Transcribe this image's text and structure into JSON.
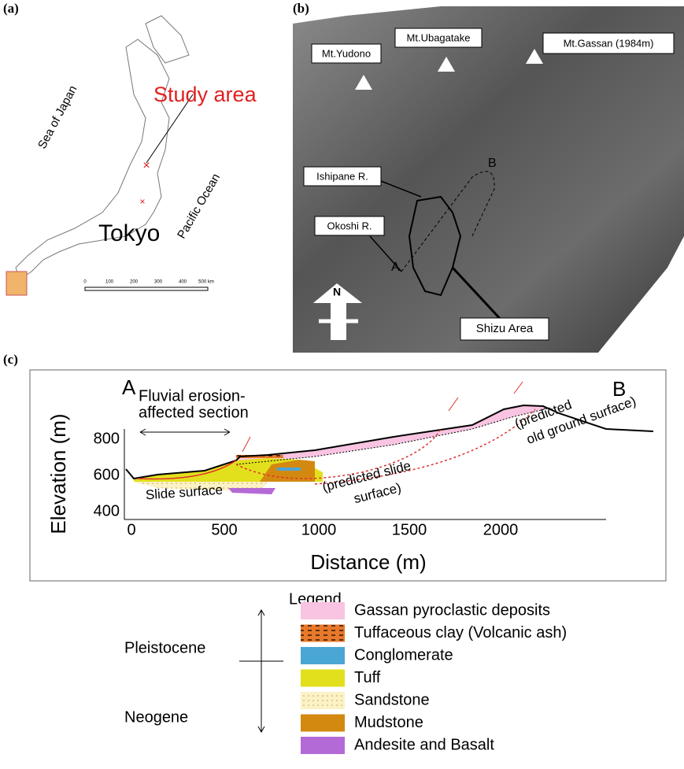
{
  "panel_a": {
    "label": "(a)",
    "study_area": "Study area",
    "sea": "Sea of Japan",
    "ocean": "Pacific Ocean",
    "city": "Tokyo",
    "scale_ticks": [
      "0",
      "100",
      "200",
      "300",
      "400",
      "500 km"
    ]
  },
  "panel_b": {
    "label": "(b)",
    "peaks": [
      "Mt.Yudono",
      "Mt.Ubagatake",
      "Mt.Gassan (1984m)"
    ],
    "rivers": [
      "Ishipane R.",
      "Okoshi R."
    ],
    "point_a": "A",
    "point_b": "B",
    "north": "N",
    "area": "Shizu Area"
  },
  "panel_c": {
    "label": "(c)",
    "end_a": "A",
    "end_b": "B",
    "fluvial": [
      "Fluvial erosion-",
      "affected section"
    ],
    "slide_surface": "Slide surface",
    "predicted_slide": [
      "(predicted slide",
      "surface)"
    ],
    "predicted_ground": [
      "(predicted",
      "old ground surface)"
    ],
    "y_label": "Elevation (m)",
    "x_label": "Distance (m)",
    "yticks": [
      "800",
      "600",
      "400"
    ],
    "xticks": [
      "0",
      "500",
      "1000",
      "1500",
      "2000"
    ]
  },
  "legend": {
    "title": "Legend",
    "periods": [
      "Pleistocene",
      "Neogene"
    ],
    "items": [
      {
        "label": "Gassan pyroclastic deposits",
        "color": "#f8c4e1"
      },
      {
        "label": "Tuffaceous clay (Volcanic ash)",
        "color": "#e8782a"
      },
      {
        "label": "Conglomerate",
        "color": "#4aa6d4"
      },
      {
        "label": "Tuff",
        "color": "#e2e01c"
      },
      {
        "label": "Sandstone",
        "color": "#fbf2c6"
      },
      {
        "label": "Mudstone",
        "color": "#d3890f"
      },
      {
        "label": "Andesite and Basalt",
        "color": "#b46ad6"
      }
    ]
  }
}
